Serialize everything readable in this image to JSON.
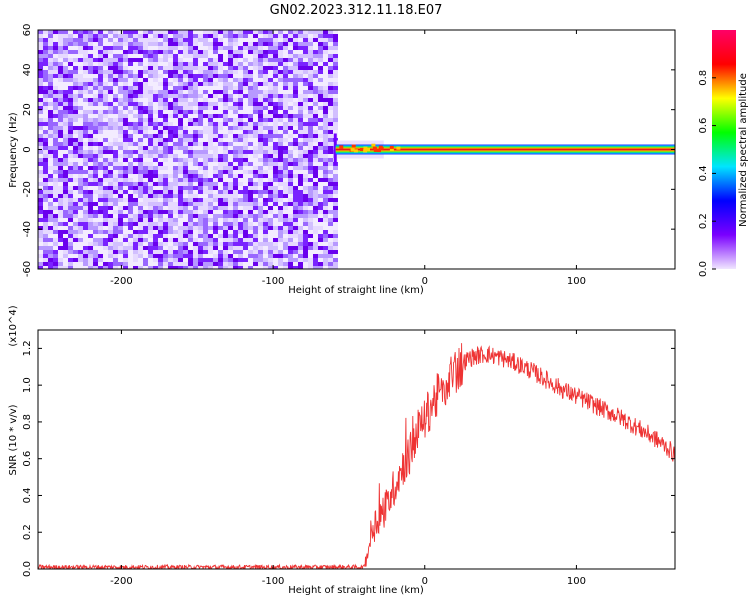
{
  "title": "GN02.2023.312.11.18.E07",
  "chart_data": [
    {
      "type": "heatmap",
      "xlabel": "Height of straight line (km)",
      "ylabel": "Frequency (Hz)",
      "xlim": [
        -255,
        165
      ],
      "ylim": [
        -60,
        60
      ],
      "x_ticks": [
        -200,
        -100,
        0,
        100
      ],
      "x_tick_labels": [
        "-200",
        "-100",
        "0",
        "100"
      ],
      "y_ticks": [
        -60,
        -40,
        -20,
        0,
        20,
        40,
        60
      ],
      "y_tick_labels": [
        "-60",
        "-40",
        "-20",
        "0",
        "20",
        "40",
        "60"
      ],
      "noise_region_x": [
        -255,
        -60
      ],
      "line_region_x": [
        -60,
        165
      ],
      "line_center_frequency_hz": 0,
      "colorbar": {
        "label": "Normalized spectral amplitude",
        "range": [
          0,
          1
        ],
        "ticks": [
          "0.0",
          "0.2",
          "0.4",
          "0.6",
          "0.8"
        ],
        "colors": [
          "#f0e6ff",
          "#7a00ff",
          "#0000ff",
          "#00e5ff",
          "#00ff00",
          "#ffff00",
          "#ff0000",
          "#ff0066"
        ]
      },
      "grid": false
    },
    {
      "type": "line",
      "xlabel": "Height of straight line (km)",
      "ylabel": "SNR (10 * v/v)",
      "y_multiplier": "(x10^4)",
      "xlim": [
        -255,
        165
      ],
      "ylim": [
        0,
        1.3
      ],
      "x_ticks": [
        -200,
        -100,
        0,
        100
      ],
      "x_tick_labels": [
        "-200",
        "-100",
        "0",
        "100"
      ],
      "y_ticks": [
        0,
        0.2,
        0.4,
        0.6,
        0.8,
        1.0,
        1.2
      ],
      "y_tick_labels": [
        "0.0",
        "0.2",
        "0.4",
        "0.6",
        "0.8",
        "1.0",
        "1.2"
      ],
      "color": "#ee3333",
      "series": [
        {
          "x": [
            -255,
            -200,
            -150,
            -100,
            -50,
            -40,
            -38,
            -35,
            -30,
            -25,
            -20,
            -15,
            -10,
            -5,
            0,
            5,
            10,
            15,
            20,
            25,
            30,
            35,
            40,
            45,
            50,
            60,
            70,
            80,
            90,
            100,
            110,
            120,
            130,
            140,
            150,
            160,
            165
          ],
          "y": [
            0.01,
            0.01,
            0.01,
            0.01,
            0.01,
            0.01,
            0.08,
            0.22,
            0.28,
            0.35,
            0.45,
            0.55,
            0.62,
            0.75,
            0.82,
            0.9,
            0.96,
            1.02,
            1.08,
            1.12,
            1.15,
            1.16,
            1.17,
            1.16,
            1.15,
            1.12,
            1.08,
            1.03,
            0.98,
            0.94,
            0.9,
            0.86,
            0.82,
            0.77,
            0.72,
            0.66,
            0.62
          ]
        }
      ],
      "grid": false
    }
  ]
}
